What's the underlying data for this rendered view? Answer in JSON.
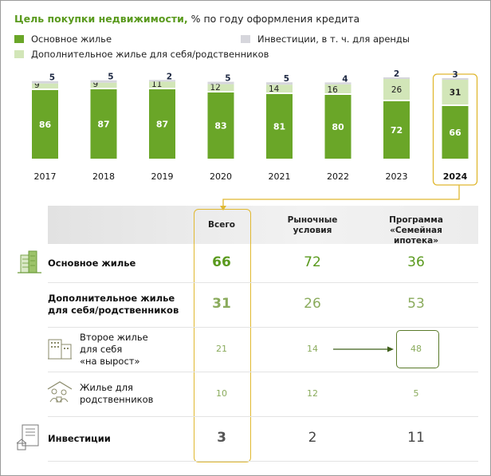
{
  "header": {
    "title_accent": "Цель покупки недвижимости,",
    "title_rest": " % по году оформления кредита"
  },
  "legend": [
    {
      "label": "Основное жилье",
      "color": "#6aa628"
    },
    {
      "label": "Инвестиции, в т. ч. для аренды",
      "color": "#d6d6dc"
    },
    {
      "label": "Дополнительное жилье для себя/родственников",
      "color": "#d2e6b8"
    }
  ],
  "chart_data": {
    "type": "bar",
    "stacked": true,
    "title": "Цель покупки недвижимости, % по году оформления кредита",
    "categories": [
      "2017",
      "2018",
      "2019",
      "2020",
      "2021",
      "2022",
      "2023",
      "2024"
    ],
    "highlight_category": "2024",
    "series": [
      {
        "name": "Основное жилье",
        "color": "#6aa628",
        "values": [
          86,
          87,
          87,
          83,
          81,
          80,
          72,
          66
        ]
      },
      {
        "name": "Дополнительное жилье для себя/родственников",
        "color": "#d2e6b8",
        "values": [
          9,
          9,
          11,
          12,
          14,
          16,
          26,
          31
        ]
      },
      {
        "name": "Инвестиции, в т. ч. для аренды",
        "color": "#d6d6dc",
        "values": [
          5,
          5,
          2,
          5,
          5,
          4,
          2,
          3
        ]
      }
    ],
    "ylim": [
      0,
      100
    ],
    "xlabel": "",
    "ylabel": ""
  },
  "table": {
    "columns": [
      "Всего",
      "Рыночные\nусловия",
      "Программа\n«Семейная ипотека»"
    ],
    "rows": [
      {
        "label": "Основное жилье",
        "values": [
          "66",
          "72",
          "36"
        ],
        "icon": "buildings-icon"
      },
      {
        "label": "Дополнительное жилье\nдля себя/родственников",
        "values": [
          "31",
          "26",
          "53"
        ],
        "icon": ""
      },
      {
        "label": "Второе жилье\nдля себя\n«на вырост»",
        "values": [
          "21",
          "14",
          "48"
        ],
        "icon": "apartment-block-icon"
      },
      {
        "label": "Жилье для\nродственников",
        "values": [
          "10",
          "12",
          "5"
        ],
        "icon": "family-house-icon"
      },
      {
        "label": "Инвестиции",
        "values": [
          "3",
          "2",
          "11"
        ],
        "icon": "contract-house-icon"
      }
    ]
  },
  "colors": {
    "highlight": "#e0b830",
    "green_dark": "#5a9a1e",
    "green_light": "#8aab5c",
    "text_dark": "#333333"
  }
}
